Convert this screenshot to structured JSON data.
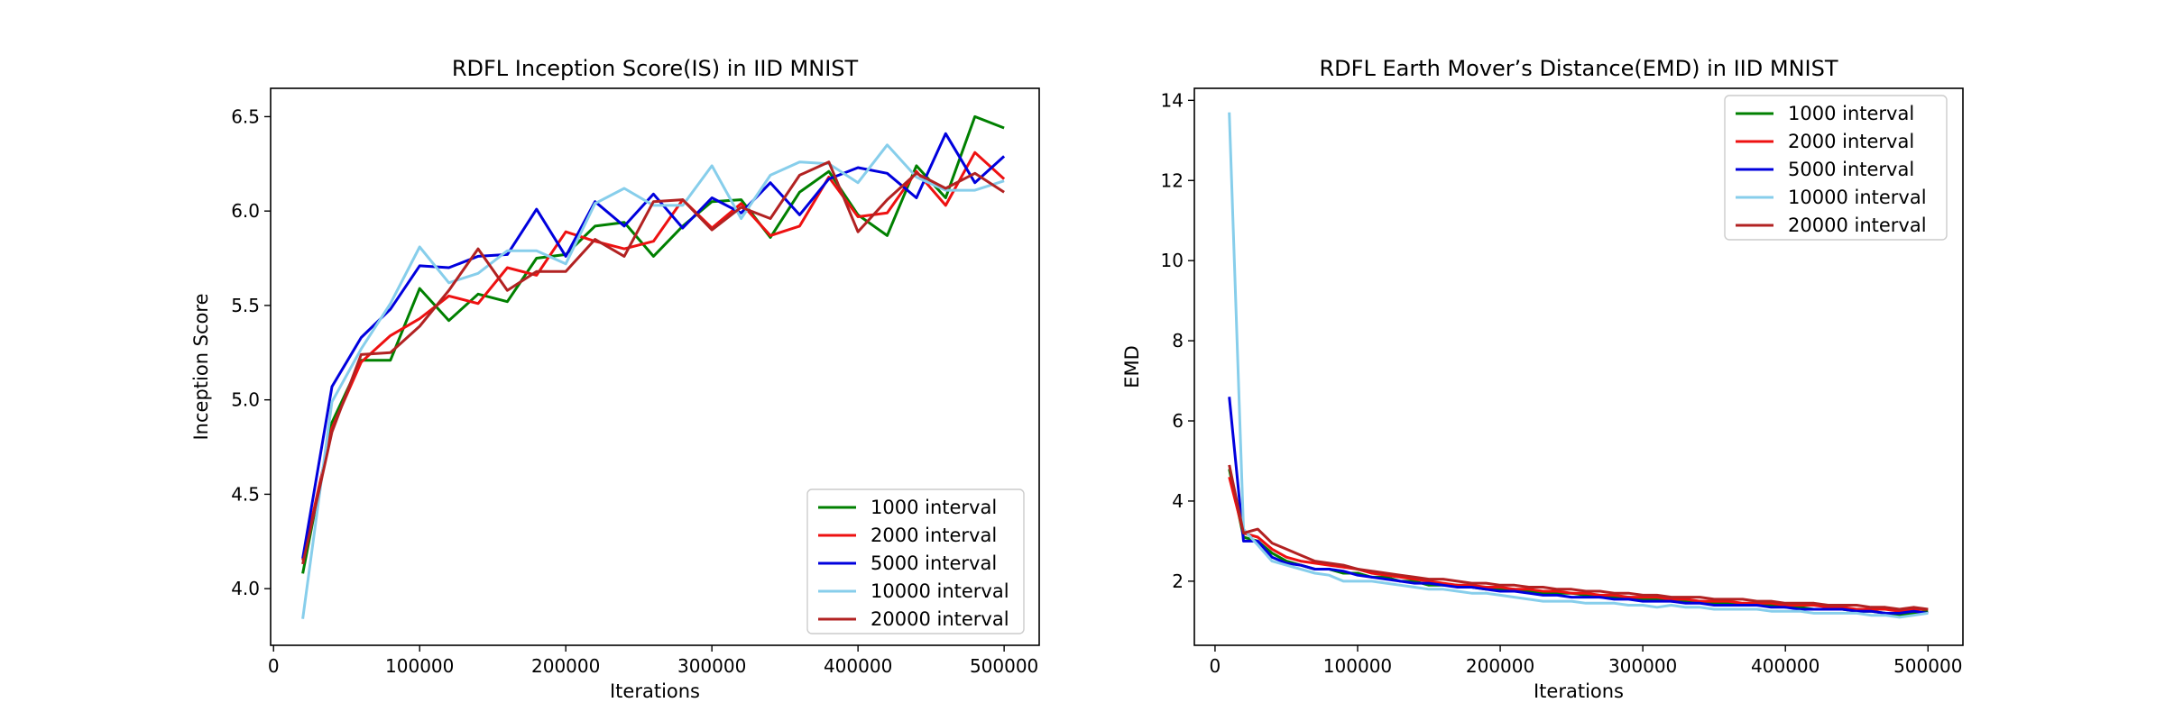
{
  "chart_data": [
    {
      "type": "line",
      "title": "RDFL Inception Score(IS) in IID MNIST",
      "xlabel": "Iterations",
      "ylabel": "Inception Score",
      "xlim": [
        -2000,
        524000
      ],
      "ylim": [
        3.7,
        6.65
      ],
      "xticks": [
        0,
        100000,
        200000,
        300000,
        400000,
        500000
      ],
      "yticks": [
        4.0,
        4.5,
        5.0,
        5.5,
        6.0,
        6.5
      ],
      "legend_position": "lower-right",
      "x": [
        20000,
        40000,
        60000,
        80000,
        100000,
        120000,
        140000,
        160000,
        180000,
        200000,
        220000,
        240000,
        260000,
        280000,
        300000,
        320000,
        340000,
        360000,
        380000,
        400000,
        420000,
        440000,
        460000,
        480000,
        500000
      ],
      "series": [
        {
          "name": "1000 interval",
          "color": "#008000",
          "values": [
            4.08,
            4.88,
            5.21,
            5.21,
            5.59,
            5.42,
            5.56,
            5.52,
            5.75,
            5.77,
            5.92,
            5.94,
            5.76,
            5.92,
            6.05,
            6.06,
            5.86,
            6.1,
            6.21,
            5.98,
            5.87,
            6.24,
            6.07,
            6.5,
            6.44
          ]
        },
        {
          "name": "2000 interval",
          "color": "#ee1111",
          "values": [
            4.15,
            4.85,
            5.2,
            5.34,
            5.43,
            5.55,
            5.51,
            5.7,
            5.66,
            5.89,
            5.84,
            5.8,
            5.84,
            6.06,
            5.91,
            6.04,
            5.87,
            5.92,
            6.18,
            5.97,
            5.99,
            6.21,
            6.03,
            6.31,
            6.17
          ]
        },
        {
          "name": "5000 interval",
          "color": "#0000dd",
          "values": [
            4.16,
            5.07,
            5.33,
            5.48,
            5.71,
            5.7,
            5.76,
            5.77,
            6.01,
            5.76,
            6.05,
            5.92,
            6.09,
            5.91,
            6.07,
            5.99,
            6.15,
            5.98,
            6.17,
            6.23,
            6.2,
            6.07,
            6.41,
            6.15,
            6.29
          ]
        },
        {
          "name": "10000 interval",
          "color": "#87ceeb",
          "values": [
            3.84,
            4.99,
            5.27,
            5.51,
            5.81,
            5.62,
            5.67,
            5.79,
            5.79,
            5.72,
            6.04,
            6.12,
            6.03,
            6.03,
            6.24,
            5.96,
            6.19,
            6.26,
            6.25,
            6.15,
            6.35,
            6.18,
            6.11,
            6.11,
            6.16
          ]
        },
        {
          "name": "20000 interval",
          "color": "#b22222",
          "values": [
            4.13,
            4.83,
            5.24,
            5.25,
            5.39,
            5.58,
            5.8,
            5.58,
            5.68,
            5.68,
            5.85,
            5.76,
            6.05,
            6.06,
            5.9,
            6.02,
            5.96,
            6.19,
            6.26,
            5.89,
            6.06,
            6.2,
            6.12,
            6.2,
            6.1
          ]
        }
      ]
    },
    {
      "type": "line",
      "title": "RDFL Earth Mover’s Distance(EMD) in IID MNIST",
      "xlabel": "Iterations",
      "ylabel": "EMD",
      "xlim": [
        -14500,
        524500
      ],
      "ylim": [
        0.4,
        14.3
      ],
      "xticks": [
        0,
        100000,
        200000,
        300000,
        400000,
        500000
      ],
      "yticks": [
        2,
        4,
        6,
        8,
        10,
        12,
        14
      ],
      "legend_position": "upper-right",
      "x": [
        10000,
        20000,
        30000,
        40000,
        50000,
        60000,
        70000,
        80000,
        90000,
        100000,
        110000,
        120000,
        130000,
        140000,
        150000,
        160000,
        170000,
        180000,
        190000,
        200000,
        210000,
        220000,
        230000,
        240000,
        250000,
        260000,
        270000,
        280000,
        290000,
        300000,
        310000,
        320000,
        330000,
        340000,
        350000,
        360000,
        370000,
        380000,
        390000,
        400000,
        410000,
        420000,
        430000,
        440000,
        450000,
        460000,
        470000,
        480000,
        490000,
        500000
      ],
      "series": [
        {
          "name": "1000 interval",
          "color": "#008000",
          "values": [
            4.8,
            3.1,
            3.0,
            2.7,
            2.5,
            2.4,
            2.3,
            2.3,
            2.2,
            2.2,
            2.1,
            2.1,
            2.0,
            2.0,
            1.9,
            1.9,
            1.9,
            1.85,
            1.8,
            1.8,
            1.8,
            1.75,
            1.7,
            1.7,
            1.7,
            1.65,
            1.6,
            1.6,
            1.6,
            1.55,
            1.55,
            1.5,
            1.5,
            1.5,
            1.45,
            1.45,
            1.4,
            1.4,
            1.4,
            1.35,
            1.35,
            1.3,
            1.3,
            1.3,
            1.25,
            1.25,
            1.2,
            1.15,
            1.2,
            1.25
          ]
        },
        {
          "name": "2000 interval",
          "color": "#ee1111",
          "values": [
            4.6,
            3.2,
            3.1,
            2.8,
            2.6,
            2.5,
            2.45,
            2.4,
            2.35,
            2.3,
            2.2,
            2.15,
            2.1,
            2.05,
            2.0,
            1.95,
            1.9,
            1.9,
            1.85,
            1.85,
            1.8,
            1.8,
            1.75,
            1.75,
            1.7,
            1.7,
            1.65,
            1.65,
            1.6,
            1.6,
            1.6,
            1.55,
            1.55,
            1.5,
            1.5,
            1.5,
            1.45,
            1.45,
            1.45,
            1.4,
            1.4,
            1.4,
            1.35,
            1.35,
            1.3,
            1.3,
            1.3,
            1.25,
            1.3,
            1.3
          ]
        },
        {
          "name": "5000 interval",
          "color": "#0000dd",
          "values": [
            6.6,
            3.0,
            3.0,
            2.6,
            2.45,
            2.4,
            2.3,
            2.3,
            2.25,
            2.15,
            2.1,
            2.05,
            2.0,
            1.95,
            1.95,
            1.9,
            1.85,
            1.85,
            1.8,
            1.75,
            1.75,
            1.7,
            1.65,
            1.65,
            1.6,
            1.6,
            1.6,
            1.55,
            1.55,
            1.5,
            1.5,
            1.5,
            1.45,
            1.45,
            1.4,
            1.4,
            1.4,
            1.4,
            1.35,
            1.35,
            1.3,
            1.3,
            1.3,
            1.3,
            1.25,
            1.25,
            1.2,
            1.2,
            1.25,
            1.2
          ]
        },
        {
          "name": "10000 interval",
          "color": "#87ceeb",
          "values": [
            13.7,
            3.3,
            2.9,
            2.5,
            2.4,
            2.3,
            2.2,
            2.15,
            2.0,
            2.0,
            2.0,
            1.95,
            1.9,
            1.85,
            1.8,
            1.8,
            1.75,
            1.7,
            1.7,
            1.65,
            1.6,
            1.55,
            1.5,
            1.5,
            1.5,
            1.45,
            1.45,
            1.45,
            1.4,
            1.4,
            1.35,
            1.4,
            1.35,
            1.35,
            1.3,
            1.3,
            1.3,
            1.3,
            1.25,
            1.25,
            1.25,
            1.2,
            1.2,
            1.2,
            1.2,
            1.15,
            1.15,
            1.1,
            1.15,
            1.2
          ]
        },
        {
          "name": "20000 interval",
          "color": "#b22222",
          "values": [
            4.9,
            3.2,
            3.3,
            2.95,
            2.8,
            2.65,
            2.5,
            2.45,
            2.4,
            2.3,
            2.25,
            2.2,
            2.15,
            2.1,
            2.05,
            2.05,
            2.0,
            1.95,
            1.95,
            1.9,
            1.9,
            1.85,
            1.85,
            1.8,
            1.8,
            1.75,
            1.75,
            1.7,
            1.7,
            1.65,
            1.65,
            1.6,
            1.6,
            1.6,
            1.55,
            1.55,
            1.55,
            1.5,
            1.5,
            1.45,
            1.45,
            1.45,
            1.4,
            1.4,
            1.4,
            1.35,
            1.35,
            1.3,
            1.35,
            1.3
          ]
        }
      ]
    }
  ]
}
